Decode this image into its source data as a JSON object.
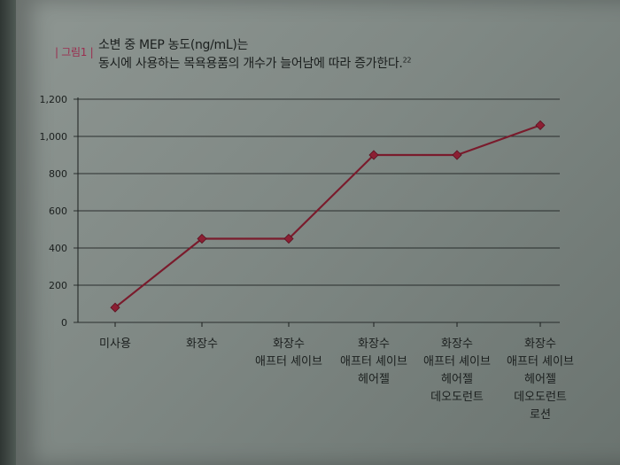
{
  "caption": {
    "tag": "| 그림1 |",
    "line1": "소변 중 MEP 농도(ng/mL)는",
    "line2": "동시에 사용하는 목욕용품의 개수가 늘어남에 따라 증가한다.",
    "ref": "22"
  },
  "colors": {
    "line": "#7a1b2c",
    "marker": "#8c1f33",
    "grid": "#1b1f1e"
  },
  "chart_data": {
    "type": "line",
    "title": "",
    "xlabel": "",
    "ylabel": "",
    "ylim": [
      0,
      1200
    ],
    "yticks": [
      0,
      200,
      400,
      600,
      800,
      1000,
      1200
    ],
    "ytick_labels": [
      "0",
      "200",
      "400",
      "600",
      "800",
      "1,000",
      "1,200"
    ],
    "grid": true,
    "categories": [
      [
        "미사용"
      ],
      [
        "화장수"
      ],
      [
        "화장수",
        "애프터 셰이브"
      ],
      [
        "화장수",
        "애프터 셰이브",
        "헤어젤"
      ],
      [
        "화장수",
        "애프터 셰이브",
        "헤어젤",
        "데오도런트"
      ],
      [
        "화장수",
        "애프터 셰이브",
        "헤어젤",
        "데오도런트",
        "로션"
      ]
    ],
    "series": [
      {
        "values": [
          80,
          450,
          450,
          900,
          900,
          1060
        ]
      }
    ]
  }
}
